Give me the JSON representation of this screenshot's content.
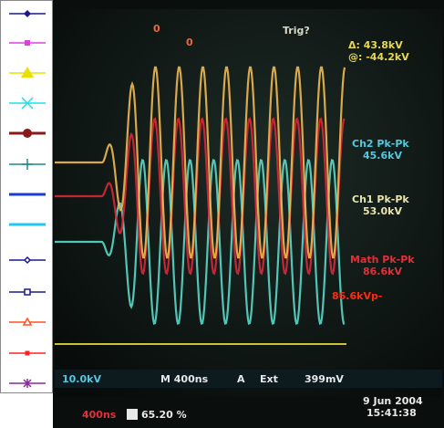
{
  "screen": {
    "trigger": "Trig?",
    "cursor_delta": "Δ: 43.8kV",
    "cursor_at": "@: -44.2kV",
    "measurements": [
      {
        "label": "Ch2 Pk-Pk",
        "value": "45.6kV"
      },
      {
        "label": "Ch1 Pk-Pk",
        "value": "53.0kV"
      },
      {
        "label": "Math Pk-Pk",
        "value": "86.6kV"
      }
    ],
    "annotation": "86.6kVp-",
    "status": {
      "scale": "10.0kV",
      "timebase": "M 400ns",
      "trigger_source": "A",
      "trigger_mode": "Ext",
      "trigger_level": "399mV",
      "math_timebase": "400ns",
      "position": "65.20 %",
      "date": "9 Jun 2004",
      "time": "15:41:38"
    }
  }
}
